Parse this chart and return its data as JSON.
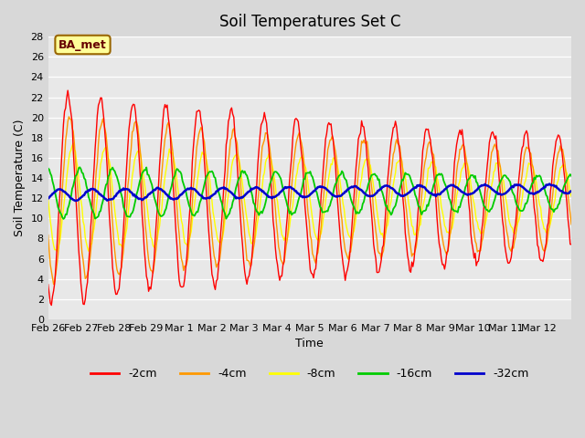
{
  "title": "Soil Temperatures Set C",
  "xlabel": "Time",
  "ylabel": "Soil Temperature (C)",
  "ylim": [
    0,
    28
  ],
  "yticks": [
    0,
    2,
    4,
    6,
    8,
    10,
    12,
    14,
    16,
    18,
    20,
    22,
    24,
    26,
    28
  ],
  "colors": {
    "-2cm": "#ff0000",
    "-4cm": "#ff9900",
    "-8cm": "#ffff00",
    "-16cm": "#00cc00",
    "-32cm": "#0000cc"
  },
  "legend_labels": [
    "-2cm",
    "-4cm",
    "-8cm",
    "-16cm",
    "-32cm"
  ],
  "annotation_text": "BA_met",
  "annotation_bg": "#ffff99",
  "annotation_border": "#996600",
  "fig_bg": "#d8d8d8",
  "ax_bg": "#e8e8e8",
  "x_tick_labels": [
    "Feb 26",
    "Feb 27",
    "Feb 28",
    "Feb 29",
    "Mar 1",
    "Mar 2",
    "Mar 3",
    "Mar 4",
    "Mar 5",
    "Mar 6",
    "Mar 7",
    "Mar 8",
    "Mar 9",
    "Mar 10",
    "Mar 11",
    "Mar 12"
  ],
  "num_points": 480,
  "days": 16
}
